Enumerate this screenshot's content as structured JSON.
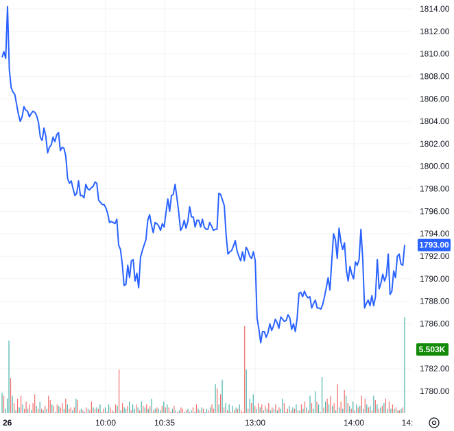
{
  "chart_data": {
    "type": "line",
    "y_ticks": [
      "1814.00",
      "1812.00",
      "1810.00",
      "1808.00",
      "1806.00",
      "1804.00",
      "1802.00",
      "1800.00",
      "1798.00",
      "1796.00",
      "1794.00",
      "1792.00",
      "1790.00",
      "1788.00",
      "1786.00",
      "1782.00",
      "1780.00"
    ],
    "ylim": [
      1779,
      1814.5
    ],
    "x_ticks": [
      "26",
      "10:00",
      "10:35",
      "13:00",
      "14:00",
      "14:"
    ],
    "last_price": 1793.0,
    "last_price_label": "1793.00",
    "last_volume_label": "5.503K",
    "grid": true,
    "price_series": [
      1809.7,
      1810.2,
      1809.6,
      1814.2,
      1808.6,
      1807.0,
      1806.6,
      1806.4,
      1805.5,
      1804.6,
      1804.0,
      1804.4,
      1805.3,
      1805.0,
      1804.9,
      1804.4,
      1804.7,
      1804.9,
      1804.8,
      1804.5,
      1803.9,
      1802.6,
      1802.3,
      1803.4,
      1802.7,
      1801.2,
      1801.7,
      1801.9,
      1802.6,
      1802.2,
      1802.8,
      1803.0,
      1801.4,
      1801.7,
      1801.6,
      1800.9,
      1798.9,
      1798.5,
      1798.7,
      1798.0,
      1797.4,
      1797.6,
      1798.7,
      1797.4,
      1797.4,
      1797.2,
      1798.4,
      1798.0,
      1797.9,
      1798.1,
      1798.2,
      1798.6,
      1798.5,
      1797.0,
      1796.8,
      1796.6,
      1796.6,
      1796.3,
      1795.8,
      1795.0,
      1795.1,
      1795.0,
      1794.9,
      1795.3,
      1793.0,
      1792.6,
      1791.3,
      1789.4,
      1789.5,
      1791.2,
      1790.1,
      1791.6,
      1791.7,
      1789.8,
      1790.5,
      1789.2,
      1791.9,
      1792.5,
      1793.0,
      1793.5,
      1795.2,
      1795.7,
      1794.8,
      1794.1,
      1795.0,
      1794.9,
      1794.7,
      1794.3,
      1794.9,
      1794.6,
      1795.9,
      1797.1,
      1796.0,
      1797.4,
      1797.5,
      1798.4,
      1797.2,
      1795.9,
      1794.3,
      1794.6,
      1795.2,
      1794.5,
      1795.1,
      1796.4,
      1795.5,
      1795.5,
      1794.6,
      1795.2,
      1795.2,
      1794.6,
      1795.3,
      1794.6,
      1794.4,
      1794.4,
      1795.0,
      1794.7,
      1794.3,
      1794.4,
      1794.4,
      1797.6,
      1797.5,
      1797.0,
      1796.5,
      1793.9,
      1792.2,
      1792.4,
      1792.5,
      1792.9,
      1793.4,
      1792.5,
      1792.0,
      1791.6,
      1792.4,
      1791.6,
      1792.8,
      1792.5,
      1792.0,
      1791.8,
      1792.4,
      1791.6,
      1786.5,
      1785.5,
      1784.3,
      1785.3,
      1785.3,
      1784.8,
      1785.2,
      1786.0,
      1785.4,
      1785.8,
      1786.4,
      1786.1,
      1785.6,
      1786.6,
      1786.4,
      1786.2,
      1786.3,
      1786.8,
      1786.5,
      1785.5,
      1786.0,
      1785.3,
      1786.5,
      1788.7,
      1788.8,
      1788.4,
      1788.9,
      1788.5,
      1788.3,
      1788.4,
      1787.4,
      1787.8,
      1788.1,
      1787.4,
      1787.4,
      1787.3,
      1787.7,
      1788.4,
      1789.2,
      1790.1,
      1789.0,
      1791.6,
      1794.0,
      1793.5,
      1791.8,
      1794.5,
      1793.3,
      1792.6,
      1793.2,
      1790.8,
      1789.8,
      1791.1,
      1790.4,
      1790.0,
      1791.5,
      1791.2,
      1791.7,
      1794.4,
      1791.8,
      1787.4,
      1787.8,
      1788.1,
      1787.6,
      1788.5,
      1787.6,
      1788.4,
      1791.7,
      1789.1,
      1789.6,
      1790.4,
      1789.8,
      1790.3,
      1792.2,
      1788.6,
      1788.9,
      1790.7,
      1790.1,
      1792.0,
      1792.2,
      1791.3,
      1791.2,
      1793.0
    ],
    "volume_series": [
      14,
      12,
      3,
      10,
      50,
      24,
      12,
      7,
      2,
      10,
      4,
      12,
      6,
      3,
      8,
      3,
      6,
      2,
      7,
      13,
      5,
      3,
      8,
      3,
      2,
      5,
      3,
      12,
      9,
      6,
      5,
      1,
      6,
      5,
      4,
      7,
      3,
      10,
      6,
      3,
      4,
      2,
      4,
      10,
      9,
      2,
      3,
      2,
      1,
      4,
      3,
      2,
      8,
      4,
      3,
      4,
      3,
      6,
      1,
      3,
      4,
      1,
      6,
      4,
      2,
      1,
      6,
      5,
      30,
      2,
      7,
      4,
      3,
      5,
      8,
      2,
      6,
      3,
      6,
      4,
      2,
      8,
      5,
      4,
      6,
      3,
      5,
      10,
      2,
      3,
      4,
      3,
      2,
      5,
      8,
      4,
      6,
      4,
      1,
      3,
      5,
      2,
      1,
      2,
      4,
      3,
      1,
      2,
      3,
      1,
      2,
      4,
      1,
      6,
      3,
      2,
      4,
      3,
      1,
      3,
      2,
      4,
      6,
      3,
      20,
      17,
      6,
      13,
      23,
      4,
      7,
      2,
      6,
      1,
      5,
      2,
      4,
      3,
      6,
      2,
      1,
      60,
      30,
      3,
      10,
      7,
      13,
      5,
      3,
      7,
      4,
      6,
      2,
      5,
      3,
      7,
      2,
      4,
      3,
      6,
      2,
      4,
      3,
      10,
      7,
      1,
      3,
      5,
      2,
      4,
      3,
      6,
      2,
      2,
      6,
      3,
      8,
      4,
      2,
      12,
      7,
      3,
      15,
      8,
      6,
      1,
      25,
      4,
      8,
      10,
      6,
      12,
      5,
      7,
      2,
      20,
      4,
      8,
      3,
      16,
      12,
      7,
      5,
      3,
      8,
      2,
      6,
      4,
      5,
      12,
      3,
      10,
      6,
      4,
      5,
      2,
      12,
      9,
      6,
      3,
      4,
      5,
      7,
      10,
      3,
      8,
      3,
      6,
      3,
      4,
      2,
      2,
      3,
      4,
      66
    ],
    "volume_up": [
      true,
      false,
      true,
      true,
      true,
      false,
      true,
      false,
      true,
      false,
      true,
      false,
      true,
      false,
      false,
      true,
      false,
      true,
      false,
      false,
      true,
      false,
      true,
      false,
      true,
      false,
      true,
      false,
      false,
      true,
      false,
      true,
      false,
      true,
      false,
      false,
      true,
      false,
      true,
      false,
      false,
      true,
      false,
      true,
      false,
      false,
      true,
      false,
      true,
      false,
      true,
      false,
      false,
      true,
      false,
      true,
      false,
      true,
      false,
      false,
      true,
      false,
      true,
      false,
      false,
      true,
      false,
      true,
      false,
      true,
      false,
      true,
      true,
      false,
      true,
      false,
      true,
      true,
      false,
      true,
      false,
      true,
      false,
      true,
      false,
      true,
      false,
      true,
      false,
      true,
      false,
      true,
      true,
      false,
      true,
      false,
      true,
      false,
      false,
      true,
      false,
      true,
      false,
      true,
      false,
      false,
      true,
      false,
      true,
      false,
      true,
      false,
      true,
      false,
      true,
      false,
      true,
      false,
      true,
      true,
      false,
      true,
      false,
      false,
      true,
      false,
      true,
      false,
      true,
      false,
      true,
      false,
      true,
      false,
      true,
      false,
      true,
      false,
      true,
      false,
      false,
      false,
      true,
      false,
      true,
      false,
      true,
      false,
      true,
      false,
      true,
      false,
      true,
      false,
      true,
      false,
      true,
      false,
      true,
      false,
      true,
      false,
      true,
      true,
      false,
      true,
      false,
      true,
      false,
      true,
      false,
      true,
      false,
      true,
      false,
      true,
      false,
      true,
      false,
      true,
      false,
      true,
      true,
      false,
      true,
      false,
      true,
      false,
      true,
      false,
      true,
      false,
      true,
      false,
      true,
      false,
      true,
      false,
      true,
      false,
      true,
      false,
      true,
      false,
      true,
      false,
      true,
      false,
      true,
      false,
      true,
      false,
      true,
      false,
      true,
      false,
      true,
      false,
      true,
      false,
      true,
      false,
      true,
      false,
      true,
      false,
      true,
      false,
      true,
      false,
      true,
      false,
      true,
      false,
      true
    ],
    "colors": {
      "line": "#2962ff",
      "volume_up": "#26a69a",
      "volume_down": "#ef5350",
      "last_volume_badge": "#138a07",
      "price_badge": "#2962ff"
    },
    "settings_icon": "settings-gear-icon"
  }
}
